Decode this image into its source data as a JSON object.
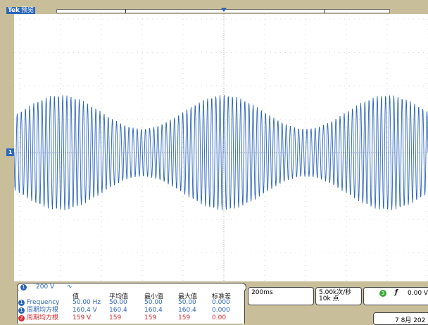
{
  "header": {
    "brand": "Tek",
    "mode": "预览"
  },
  "channel1": {
    "marker": "1",
    "volts_per_div": "200 V",
    "coupling_symbol": "∿",
    "color": "#2d66b8"
  },
  "measurements": {
    "headers": [
      "值",
      "平均值",
      "最小值",
      "最大值",
      "标准差"
    ],
    "rows": [
      {
        "ch": "1",
        "color": "#2d66b8",
        "name": "Frequency",
        "values": [
          "50.00 Hz",
          "50.00",
          "50.00",
          "50.00",
          "0.000"
        ]
      },
      {
        "ch": "1",
        "color": "#2d66b8",
        "name": "周期均方根",
        "values": [
          "160.4 V",
          "160.4",
          "160.4",
          "160.4",
          "0.000"
        ]
      },
      {
        "ch": "2",
        "color": "#d8262b",
        "name": "周期均方根",
        "values": [
          "159 V",
          "159",
          "159",
          "159",
          "0.00"
        ]
      }
    ]
  },
  "timebase": {
    "scale": "200ms"
  },
  "acquisition": {
    "rate": "5.00k次/秒",
    "record": "10k 点"
  },
  "trigger": {
    "source": "3",
    "slope_symbol": "ƒ",
    "level": "0.00 V",
    "color": "#3fa83a"
  },
  "datetime": {
    "date": "7 8月 202"
  }
}
